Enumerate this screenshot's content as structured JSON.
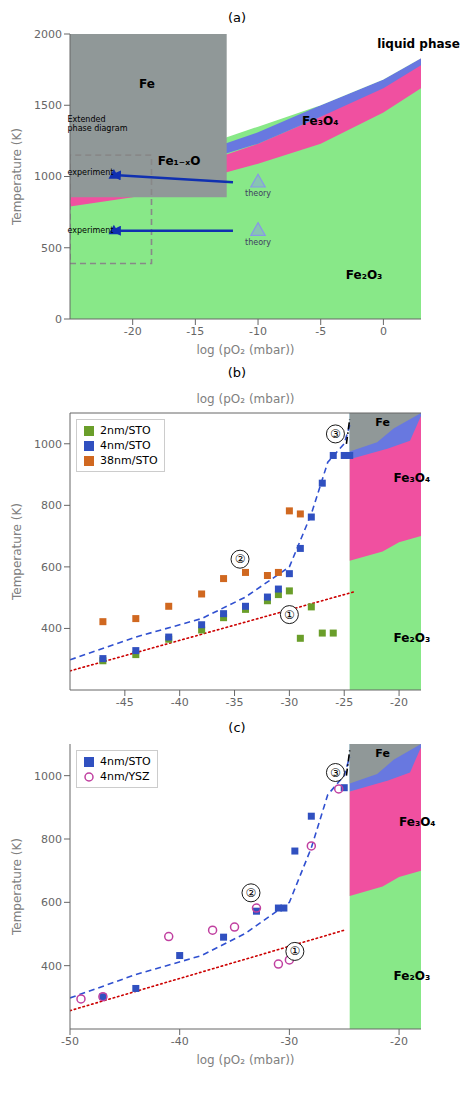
{
  "chart_data": [
    {
      "type": "phase_diagram",
      "title": "(a)",
      "x_label": "log (pO₂ (mbar))",
      "y_label": "Temperature (K)",
      "xlim": [
        -25,
        3
      ],
      "ylim": [
        0,
        2000
      ],
      "xticks": [
        -20,
        -15,
        -10,
        -5,
        0
      ],
      "yticks": [
        0,
        500,
        1000,
        1500,
        2000
      ],
      "regions": [
        {
          "color": "#88e888",
          "x": [
            -25,
            3
          ],
          "lower": [
            0,
            0
          ],
          "upper": [
            2000,
            2000
          ]
        },
        {
          "color": "#f050a0",
          "x": [
            -25,
            -20,
            -15,
            -10,
            -5,
            0,
            3
          ],
          "lower": [
            790,
            855,
            970,
            1090,
            1230,
            1450,
            1620
          ],
          "upper": [
            870,
            940,
            1080,
            1230,
            1420,
            1660,
            1830
          ]
        },
        {
          "color": "#6878e0",
          "x": [
            -25,
            -20,
            -16,
            -13,
            -10,
            -5,
            0,
            3
          ],
          "lower": [
            870,
            940,
            1050,
            1150,
            1230,
            1420,
            1620,
            1780
          ],
          "upper": [
            930,
            1000,
            1110,
            1220,
            1310,
            1500,
            1680,
            1830
          ]
        },
        {
          "color": "#ffffff",
          "x": [
            -25,
            -15,
            -10,
            -5,
            0,
            3
          ],
          "lower": [
            930,
            1200,
            1350,
            1500,
            1680,
            1830
          ],
          "upper": [
            2000,
            2000,
            2000,
            2000,
            2000,
            2000
          ]
        },
        {
          "color": "#909898",
          "x": [
            -25,
            -12.5
          ],
          "lower": [
            855,
            855
          ],
          "upper": [
            2000,
            2000
          ]
        }
      ],
      "series": [
        {
          "type": "line",
          "line_style": "dashed",
          "color": "#888888",
          "x": [
            -25,
            -18.5,
            -18.5,
            -25,
            -25
          ],
          "y": [
            390,
            390,
            1150,
            1150,
            390
          ]
        },
        {
          "type": "scatter",
          "marker": "open_triangle",
          "color": "#8898e8",
          "x": [
            -10,
            -10
          ],
          "y": [
            960,
            620
          ]
        },
        {
          "type": "arrow",
          "color": "#1030b0",
          "x": [
            -12,
            -21.5
          ],
          "y": [
            960,
            1010
          ]
        },
        {
          "type": "arrow",
          "color": "#1030b0",
          "x": [
            -12,
            -21.5
          ],
          "y": [
            620,
            620
          ]
        },
        {
          "type": "scatter",
          "marker": "triangle",
          "color": "#1030b0",
          "x": [
            -21.5,
            -21.5
          ],
          "y": [
            1010,
            620
          ]
        }
      ],
      "phase_labels": [
        {
          "text": "liquid phase",
          "x": -0.5,
          "y": 1900
        },
        {
          "text": "Fe₃O₄",
          "x": -6.5,
          "y": 1360
        },
        {
          "text": "Fe₂O₃",
          "x": -3,
          "y": 280
        },
        {
          "text": "Fe",
          "x": -19.5,
          "y": 1620
        },
        {
          "text": "Fe₁₋ₓO",
          "x": -18,
          "y": 1080
        }
      ],
      "notes": [
        {
          "text": "Extended\nphase diagram",
          "x": -25.2,
          "y": 1320
        },
        {
          "text": "experiment",
          "x": -25.2,
          "y": 1010
        },
        {
          "text": "experiment",
          "x": -25.2,
          "y": 605
        }
      ],
      "centered_notes": [
        {
          "text": "theory",
          "x": -10,
          "y": 860
        },
        {
          "text": "theory",
          "x": -10,
          "y": 520
        }
      ]
    },
    {
      "type": "phase_diagram",
      "title": "(b)",
      "x_label_top": "log (pO₂ (mbar))",
      "y_label": "Temperature (K)",
      "xlim": [
        -50,
        -18
      ],
      "ylim": [
        200,
        1100
      ],
      "xticks": [
        -45,
        -40,
        -35,
        -30,
        -25,
        -20
      ],
      "yticks": [
        400,
        600,
        800,
        1000
      ],
      "legend": "upper left",
      "regions": [
        {
          "color": "#88e888",
          "x": [
            -24.5,
            -18
          ],
          "lower": [
            200,
            200
          ],
          "upper": [
            1100,
            1100
          ]
        },
        {
          "color": "#f050a0",
          "x": [
            -24.5,
            -21.5,
            -20,
            -18
          ],
          "lower": [
            620,
            650,
            680,
            700
          ],
          "upper": [
            950,
            990,
            1010,
            1100
          ]
        },
        {
          "color": "#6878e0",
          "x": [
            -24.5,
            -21,
            -19,
            -18
          ],
          "lower": [
            950,
            985,
            1010,
            1090
          ],
          "upper": [
            1100,
            1100,
            1100,
            1100
          ]
        },
        {
          "color": "#909898",
          "x": [
            -24.5,
            -22,
            -20.5,
            -18
          ],
          "lower": [
            975,
            1005,
            1050,
            1100
          ],
          "upper": [
            1100,
            1100,
            1100,
            1100
          ]
        }
      ],
      "series": [
        {
          "type": "line",
          "line_style": "dotted",
          "color": "#cc0000",
          "x": [
            -50,
            -24
          ],
          "y": [
            262,
            520
          ]
        },
        {
          "type": "line",
          "line_style": "dashed",
          "color": "#3050d0",
          "x": [
            -50,
            -44,
            -38,
            -34,
            -30,
            -28,
            -26.5,
            -25,
            -24.5
          ],
          "y": [
            298,
            372,
            432,
            502,
            600,
            772,
            940,
            1000,
            1060
          ]
        },
        {
          "type": "scatter",
          "name": "2nm/STO",
          "marker": "square",
          "color": "#6a9e2a",
          "x": [
            -47,
            -44,
            -41,
            -38,
            -36,
            -34,
            -32,
            -31,
            -30,
            -29,
            -28,
            -27,
            -26
          ],
          "y": [
            295,
            315,
            365,
            395,
            435,
            462,
            490,
            510,
            522,
            368,
            470,
            385,
            385
          ]
        },
        {
          "type": "scatter",
          "name": "4nm/STO",
          "marker": "square",
          "color": "#3050c0",
          "x": [
            -47,
            -44,
            -41,
            -38,
            -36,
            -34,
            -32,
            -31,
            -30,
            -29,
            -28,
            -27,
            -26,
            -25,
            -24.5
          ],
          "y": [
            302,
            328,
            372,
            412,
            448,
            472,
            502,
            528,
            578,
            660,
            762,
            872,
            962,
            962,
            962
          ]
        },
        {
          "type": "scatter",
          "name": "38nm/STO",
          "marker": "square",
          "color": "#d06820",
          "x": [
            -47,
            -44,
            -41,
            -38,
            -36,
            -34,
            -32,
            -31,
            -30,
            -29
          ],
          "y": [
            422,
            432,
            472,
            512,
            562,
            582,
            572,
            582,
            782,
            772
          ]
        },
        {
          "type": "line",
          "line_style": "dashdot",
          "color": "#000000",
          "x": [
            -24.8,
            -24.5
          ],
          "y": [
            1000,
            1080
          ]
        }
      ],
      "phase_labels": [
        {
          "text": "Fe₃O₄",
          "x": -20.5,
          "y": 875
        },
        {
          "text": "Fe₂O₃",
          "x": -20.5,
          "y": 355
        }
      ],
      "centered_phase_labels": [
        {
          "text": "Fe",
          "x": -21.5,
          "y": 1058
        }
      ],
      "circled_labels": [
        {
          "text": "①",
          "x": -30,
          "y": 445
        },
        {
          "text": "②",
          "x": -34.5,
          "y": 625
        },
        {
          "text": "③",
          "x": -25.8,
          "y": 1032
        }
      ]
    },
    {
      "type": "phase_diagram",
      "title": "(c)",
      "x_label": "log (pO₂ (mbar))",
      "y_label": "Temperature (K)",
      "xlim": [
        -50,
        -18
      ],
      "ylim": [
        200,
        1100
      ],
      "xticks": [
        -50,
        -40,
        -30,
        -20
      ],
      "yticks": [
        400,
        600,
        800,
        1000
      ],
      "legend": "upper left",
      "regions": [
        {
          "color": "#88e888",
          "x": [
            -24.5,
            -18
          ],
          "lower": [
            200,
            200
          ],
          "upper": [
            1100,
            1100
          ]
        },
        {
          "color": "#f050a0",
          "x": [
            -24.5,
            -21.5,
            -20,
            -18
          ],
          "lower": [
            620,
            650,
            680,
            700
          ],
          "upper": [
            950,
            990,
            1010,
            1100
          ]
        },
        {
          "color": "#6878e0",
          "x": [
            -24.5,
            -21,
            -19,
            -18
          ],
          "lower": [
            950,
            985,
            1010,
            1090
          ],
          "upper": [
            1100,
            1100,
            1100,
            1100
          ]
        },
        {
          "color": "#909898",
          "x": [
            -24.5,
            -22,
            -20.5,
            -18
          ],
          "lower": [
            975,
            1005,
            1050,
            1100
          ],
          "upper": [
            1100,
            1100,
            1100,
            1100
          ]
        }
      ],
      "series": [
        {
          "type": "line",
          "line_style": "dotted",
          "color": "#cc0000",
          "x": [
            -50,
            -25
          ],
          "y": [
            258,
            512
          ]
        },
        {
          "type": "line",
          "line_style": "dashed",
          "color": "#3050d0",
          "x": [
            -50,
            -44,
            -38,
            -34,
            -30,
            -28,
            -26.5,
            -25,
            -24.5
          ],
          "y": [
            298,
            372,
            432,
            502,
            600,
            772,
            940,
            1000,
            1060
          ]
        },
        {
          "type": "scatter",
          "name": "4nm/STO",
          "marker": "square",
          "color": "#3050c0",
          "x": [
            -47,
            -44,
            -40,
            -36,
            -33,
            -31,
            -30.5,
            -29.5,
            -28,
            -25
          ],
          "y": [
            302,
            328,
            432,
            490,
            572,
            582,
            582,
            762,
            872,
            962
          ]
        },
        {
          "type": "scatter",
          "name": "4nm/YSZ",
          "marker": "open_circle",
          "color": "#c040a0",
          "x": [
            -49,
            -47,
            -41,
            -37,
            -35,
            -33,
            -31,
            -30,
            -28,
            -25.5
          ],
          "y": [
            295,
            302,
            492,
            512,
            522,
            582,
            405,
            418,
            778,
            958
          ]
        },
        {
          "type": "line",
          "line_style": "dashdot",
          "color": "#000000",
          "x": [
            -24.8,
            -24.5
          ],
          "y": [
            1000,
            1080
          ]
        }
      ],
      "phase_labels": [
        {
          "text": "Fe₃O₄",
          "x": -20,
          "y": 840
        },
        {
          "text": "Fe₂O₃",
          "x": -20.5,
          "y": 355
        }
      ],
      "centered_phase_labels": [
        {
          "text": "Fe",
          "x": -21.5,
          "y": 1058
        }
      ],
      "circled_labels": [
        {
          "text": "①",
          "x": -29.5,
          "y": 445
        },
        {
          "text": "②",
          "x": -33.5,
          "y": 630
        },
        {
          "text": "③",
          "x": -25.8,
          "y": 1010
        }
      ]
    }
  ]
}
